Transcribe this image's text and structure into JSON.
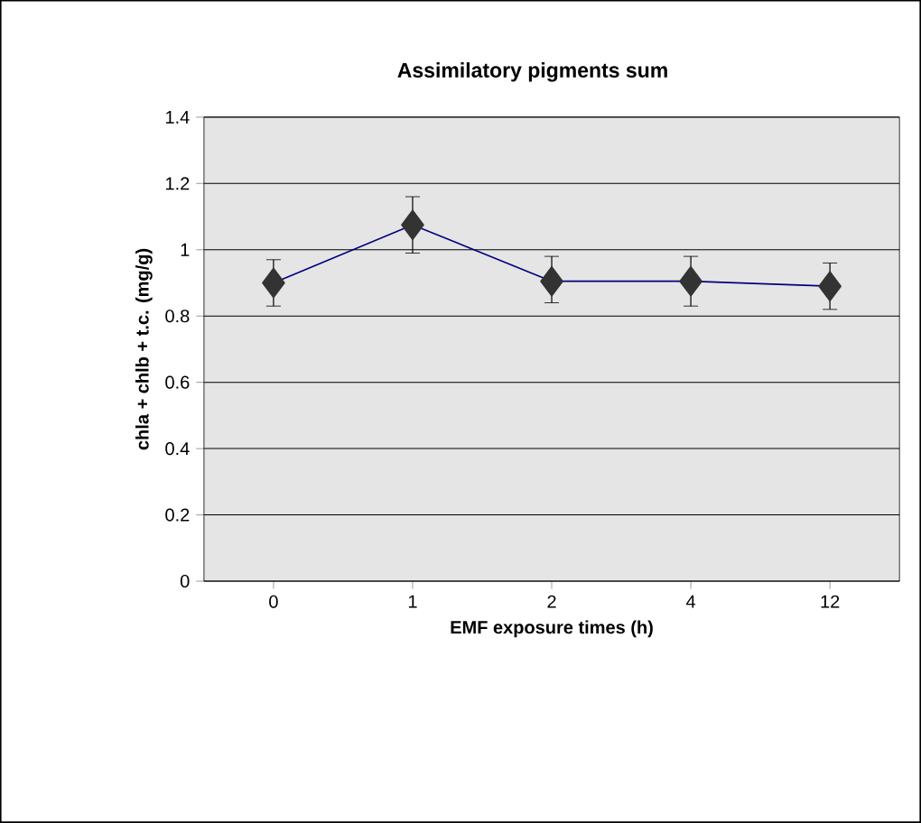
{
  "chart_data": {
    "type": "line",
    "title": "Assimilatory pigments sum",
    "xlabel": "EMF exposure times (h)",
    "ylabel": "chla + chlb + t.c. (mg/g)",
    "categories": [
      "0",
      "1",
      "2",
      "4",
      "12"
    ],
    "series": [
      {
        "color": "#000080",
        "colors": [
          "#333333",
          "#333333",
          "#333333",
          "#333333",
          "#333333"
        ],
        "values": [
          0.9,
          1.075,
          0.905,
          0.905,
          0.89
        ],
        "errors": [
          [
            0.83,
            0.97
          ],
          [
            0.99,
            1.16
          ],
          [
            0.84,
            0.98
          ],
          [
            0.83,
            0.98
          ],
          [
            0.82,
            0.96
          ]
        ]
      }
    ],
    "ylim": [
      0,
      1.4
    ],
    "yticks": [
      0,
      0.2,
      0.4,
      0.6,
      0.8,
      1,
      1.2,
      1.4
    ],
    "grid": "y",
    "marker": "diamond",
    "line_style": "solid"
  }
}
